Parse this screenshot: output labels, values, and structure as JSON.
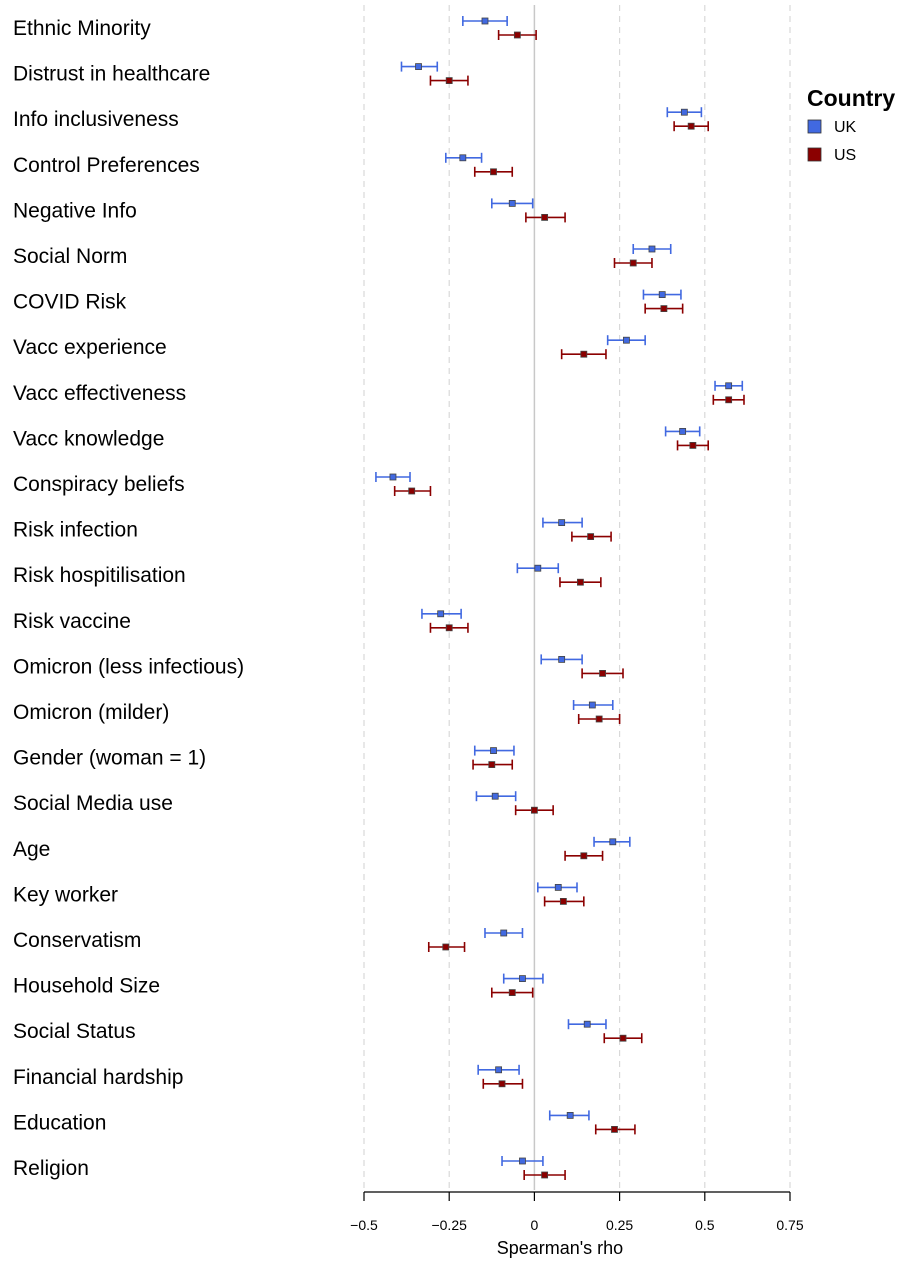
{
  "chart_data": {
    "type": "scatter",
    "xlabel": "Spearman's rho",
    "xlim": [
      -0.5,
      0.75
    ],
    "xticks": [
      -0.5,
      -0.25,
      0,
      0.25,
      0.5,
      0.75
    ],
    "xtick_labels": [
      "−0.5",
      "−0.25",
      "0",
      "0.25",
      "0.5",
      "0.75"
    ],
    "grid": "vertical dashed",
    "legend": {
      "title": "Country",
      "placement": "top-right"
    },
    "categories": [
      "Ethnic Minority",
      "Distrust in healthcare",
      "Info inclusiveness",
      "Control Preferences",
      "Negative Info",
      "Social Norm",
      "COVID Risk",
      "Vacc experience",
      "Vacc effectiveness",
      "Vacc knowledge",
      "Conspiracy beliefs",
      "Risk infection",
      "Risk hospitilisation",
      "Risk vaccine",
      "Omicron (less infectious)",
      "Omicron (milder)",
      "Gender (woman = 1)",
      "Social Media use",
      "Age",
      "Key worker",
      "Conservatism",
      "Household Size",
      "Social Status",
      "Financial hardship",
      "Education",
      "Religion"
    ],
    "series": [
      {
        "name": "UK",
        "color": "#4169E1",
        "values": [
          -0.145,
          -0.34,
          0.44,
          -0.21,
          -0.065,
          0.345,
          0.375,
          0.27,
          0.57,
          0.435,
          -0.415,
          0.08,
          0.01,
          -0.275,
          0.08,
          0.17,
          -0.12,
          -0.115,
          0.23,
          0.07,
          -0.09,
          -0.035,
          0.155,
          -0.105,
          0.105,
          -0.035
        ],
        "lower": [
          -0.21,
          -0.39,
          0.39,
          -0.26,
          -0.125,
          0.29,
          0.32,
          0.215,
          0.53,
          0.385,
          -0.465,
          0.025,
          -0.05,
          -0.33,
          0.02,
          0.115,
          -0.175,
          -0.17,
          0.175,
          0.01,
          -0.145,
          -0.09,
          0.1,
          -0.165,
          0.045,
          -0.095
        ],
        "upper": [
          -0.08,
          -0.285,
          0.49,
          -0.155,
          -0.005,
          0.4,
          0.43,
          0.325,
          0.61,
          0.485,
          -0.365,
          0.14,
          0.07,
          -0.215,
          0.14,
          0.23,
          -0.06,
          -0.055,
          0.28,
          0.125,
          -0.035,
          0.025,
          0.21,
          -0.045,
          0.16,
          0.025
        ]
      },
      {
        "name": "US",
        "color": "#8B0000",
        "values": [
          -0.05,
          -0.25,
          0.46,
          -0.12,
          0.03,
          0.29,
          0.38,
          0.145,
          0.57,
          0.465,
          -0.36,
          0.165,
          0.135,
          -0.25,
          0.2,
          0.19,
          -0.125,
          0,
          0.145,
          0.085,
          -0.26,
          -0.065,
          0.26,
          -0.095,
          0.235,
          0.03
        ],
        "lower": [
          -0.105,
          -0.305,
          0.41,
          -0.175,
          -0.025,
          0.235,
          0.325,
          0.08,
          0.525,
          0.42,
          -0.41,
          0.11,
          0.075,
          -0.305,
          0.14,
          0.13,
          -0.18,
          -0.055,
          0.09,
          0.03,
          -0.31,
          -0.125,
          0.205,
          -0.15,
          0.18,
          -0.03
        ],
        "upper": [
          0.005,
          -0.195,
          0.51,
          -0.065,
          0.09,
          0.345,
          0.435,
          0.21,
          0.615,
          0.51,
          -0.305,
          0.225,
          0.195,
          -0.195,
          0.26,
          0.25,
          -0.065,
          0.055,
          0.2,
          0.145,
          -0.205,
          -0.005,
          0.315,
          -0.035,
          0.295,
          0.09
        ]
      }
    ]
  }
}
